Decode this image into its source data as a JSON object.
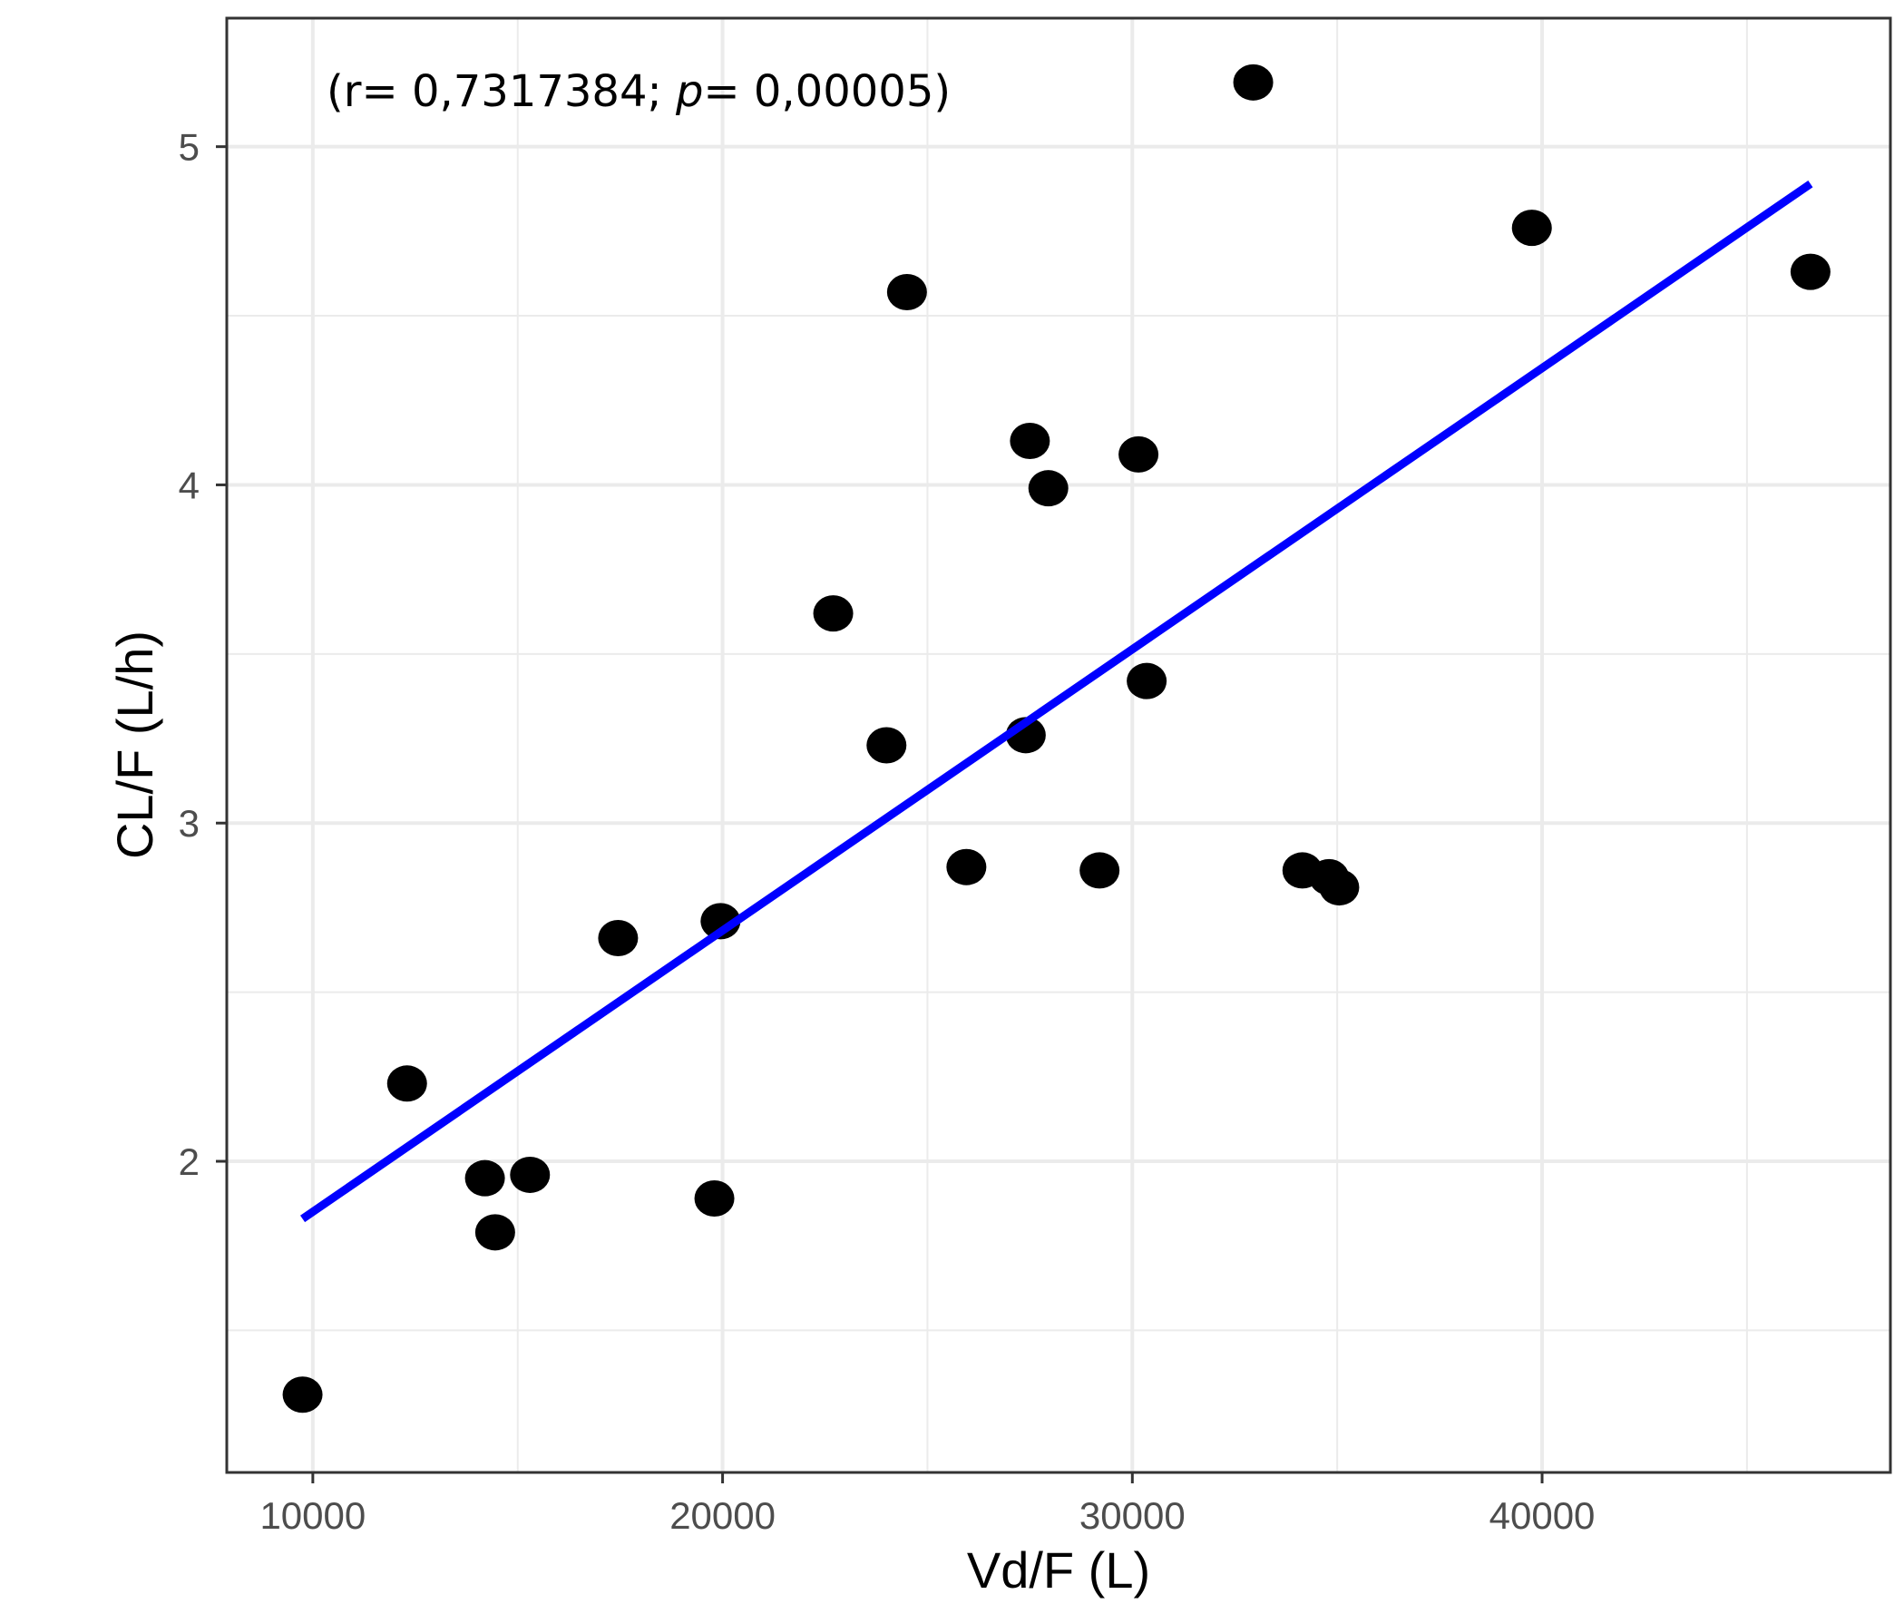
{
  "chart_data": {
    "type": "scatter",
    "title": "",
    "xlabel": "Vd/F (L)",
    "ylabel": "CL/F (L/h)",
    "xlim": [
      7900,
      48500
    ],
    "ylim": [
      1.08,
      5.38
    ],
    "x_ticks": [
      10000,
      20000,
      30000,
      40000
    ],
    "x_tick_labels": [
      "10000",
      "20000",
      "30000",
      "40000"
    ],
    "y_ticks": [
      2,
      3,
      4,
      5
    ],
    "y_tick_labels": [
      "2",
      "3",
      "4",
      "5"
    ],
    "grid": true,
    "annotation": {
      "prefix": "(r= 0,7317384; ",
      "italic": "p",
      "suffix": "= 0,00005)"
    },
    "points": [
      {
        "x": 9750,
        "y": 1.31
      },
      {
        "x": 12300,
        "y": 2.23
      },
      {
        "x": 14200,
        "y": 1.95
      },
      {
        "x": 14450,
        "y": 1.79
      },
      {
        "x": 15300,
        "y": 1.96
      },
      {
        "x": 17450,
        "y": 2.66
      },
      {
        "x": 19800,
        "y": 1.89
      },
      {
        "x": 19950,
        "y": 2.71
      },
      {
        "x": 22700,
        "y": 3.62
      },
      {
        "x": 24000,
        "y": 3.23
      },
      {
        "x": 24500,
        "y": 4.57
      },
      {
        "x": 25950,
        "y": 2.87
      },
      {
        "x": 27400,
        "y": 3.26
      },
      {
        "x": 27500,
        "y": 4.13
      },
      {
        "x": 27950,
        "y": 3.99
      },
      {
        "x": 29200,
        "y": 2.86
      },
      {
        "x": 30150,
        "y": 4.09
      },
      {
        "x": 30350,
        "y": 3.42
      },
      {
        "x": 32950,
        "y": 5.19
      },
      {
        "x": 34150,
        "y": 2.86
      },
      {
        "x": 34800,
        "y": 2.84
      },
      {
        "x": 35050,
        "y": 2.81
      },
      {
        "x": 39750,
        "y": 4.76
      },
      {
        "x": 46550,
        "y": 4.63
      }
    ],
    "fit_line": {
      "x": [
        9750,
        46550
      ],
      "y": [
        1.83,
        4.89
      ],
      "color": "#0000ff"
    },
    "point_color": "#000000"
  }
}
